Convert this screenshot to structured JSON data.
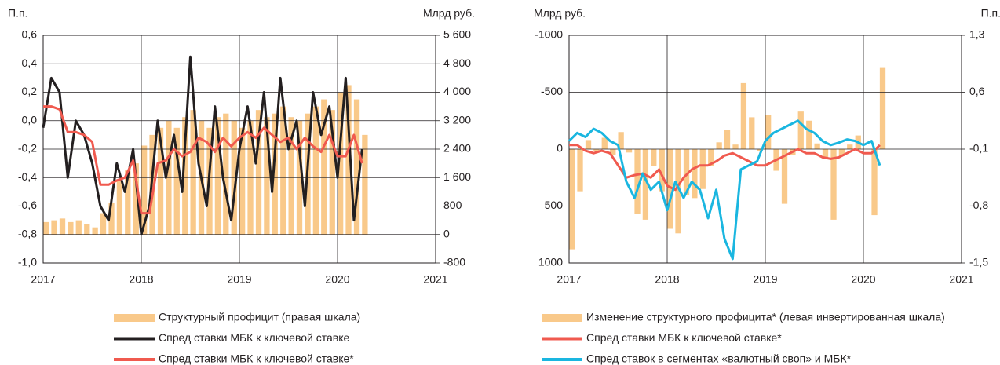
{
  "chart_data": [
    {
      "type": "combo",
      "y_label": "П.п.",
      "y2_label": "Млрд руб.",
      "xlim": [
        2017,
        2021
      ],
      "xticks": [
        2017,
        2018,
        2019,
        2020,
        2021
      ],
      "ylim": [
        -1.0,
        0.6
      ],
      "yticks": [
        {
          "value": -1.0,
          "label": "-1,0"
        },
        {
          "value": -0.8,
          "label": "-0,8"
        },
        {
          "value": -0.6,
          "label": "-0,6"
        },
        {
          "value": -0.4,
          "label": "-0,4"
        },
        {
          "value": -0.2,
          "label": "-0,2"
        },
        {
          "value": 0.0,
          "label": "0,0"
        },
        {
          "value": 0.2,
          "label": "0,2"
        },
        {
          "value": 0.4,
          "label": "0,4"
        },
        {
          "value": 0.6,
          "label": "0,6"
        }
      ],
      "y2lim": [
        -800,
        5600
      ],
      "y2ticks": [
        -800,
        0,
        800,
        {
          "value": 1600,
          "label": "1 600"
        },
        {
          "value": 2400,
          "label": "2 400"
        },
        {
          "value": 3200,
          "label": "3 200"
        },
        {
          "value": 4000,
          "label": "4 000"
        },
        {
          "value": 4800,
          "label": "4 800"
        },
        {
          "value": 5600,
          "label": "5 600"
        }
      ],
      "grid": true,
      "series": [
        {
          "name": "Структурный профицит (правая шкала)",
          "kind": "bar",
          "axis": "y2",
          "color": "#f9c98a",
          "x": [
            2017.0,
            2017.083,
            2017.167,
            2017.25,
            2017.333,
            2017.417,
            2017.5,
            2017.583,
            2017.667,
            2017.75,
            2017.833,
            2017.917,
            2018.0,
            2018.083,
            2018.167,
            2018.25,
            2018.333,
            2018.417,
            2018.5,
            2018.583,
            2018.667,
            2018.75,
            2018.833,
            2018.917,
            2019.0,
            2019.083,
            2019.167,
            2019.25,
            2019.333,
            2019.417,
            2019.5,
            2019.583,
            2019.667,
            2019.75,
            2019.833,
            2019.917,
            2020.0,
            2020.083,
            2020.167,
            2020.25
          ],
          "values": [
            350,
            400,
            450,
            350,
            400,
            300,
            200,
            600,
            900,
            1500,
            1800,
            2000,
            2500,
            2800,
            3000,
            3200,
            3000,
            3300,
            3500,
            3200,
            3000,
            3300,
            3400,
            3200,
            3000,
            3200,
            3500,
            3300,
            3400,
            3600,
            3300,
            3200,
            3400,
            3600,
            3800,
            3500,
            4000,
            4200,
            3800,
            2800
          ]
        },
        {
          "name": "Спред ставки МБК к ключевой ставке",
          "kind": "line",
          "axis": "y",
          "color": "#231f20",
          "x": [
            2017.0,
            2017.083,
            2017.167,
            2017.25,
            2017.333,
            2017.417,
            2017.5,
            2017.583,
            2017.667,
            2017.75,
            2017.833,
            2017.917,
            2018.0,
            2018.083,
            2018.167,
            2018.25,
            2018.333,
            2018.417,
            2018.5,
            2018.583,
            2018.667,
            2018.75,
            2018.833,
            2018.917,
            2019.0,
            2019.083,
            2019.167,
            2019.25,
            2019.333,
            2019.417,
            2019.5,
            2019.583,
            2019.667,
            2019.75,
            2019.833,
            2019.917,
            2020.0,
            2020.083,
            2020.167,
            2020.25
          ],
          "values": [
            -0.05,
            0.3,
            0.2,
            -0.4,
            0.0,
            -0.1,
            -0.3,
            -0.6,
            -0.7,
            -0.3,
            -0.5,
            -0.2,
            -0.8,
            -0.6,
            0.0,
            -0.4,
            -0.1,
            -0.5,
            0.45,
            -0.3,
            -0.6,
            0.1,
            -0.4,
            -0.7,
            -0.2,
            0.1,
            -0.3,
            0.2,
            -0.5,
            0.3,
            -0.2,
            0.0,
            -0.6,
            0.2,
            -0.1,
            0.1,
            -0.4,
            0.3,
            -0.7,
            -0.2
          ]
        },
        {
          "name": "Спред ставки МБК к ключевой ставке*",
          "kind": "line",
          "axis": "y",
          "color": "#f05a4f",
          "x": [
            2017.0,
            2017.083,
            2017.167,
            2017.25,
            2017.333,
            2017.417,
            2017.5,
            2017.583,
            2017.667,
            2017.75,
            2017.833,
            2017.917,
            2018.0,
            2018.083,
            2018.167,
            2018.25,
            2018.333,
            2018.417,
            2018.5,
            2018.583,
            2018.667,
            2018.75,
            2018.833,
            2018.917,
            2019.0,
            2019.083,
            2019.167,
            2019.25,
            2019.333,
            2019.417,
            2019.5,
            2019.583,
            2019.667,
            2019.75,
            2019.833,
            2019.917,
            2020.0,
            2020.083,
            2020.167,
            2020.25
          ],
          "values": [
            0.1,
            0.1,
            0.08,
            -0.08,
            -0.08,
            -0.1,
            -0.15,
            -0.45,
            -0.45,
            -0.42,
            -0.4,
            -0.28,
            -0.65,
            -0.65,
            -0.3,
            -0.28,
            -0.2,
            -0.25,
            -0.22,
            -0.12,
            -0.15,
            -0.22,
            -0.12,
            -0.18,
            -0.12,
            -0.08,
            -0.12,
            -0.05,
            -0.1,
            -0.15,
            -0.12,
            -0.2,
            -0.12,
            -0.18,
            -0.22,
            -0.1,
            -0.25,
            -0.25,
            -0.1,
            -0.3
          ]
        }
      ]
    },
    {
      "type": "combo",
      "y_label": "Млрд руб.",
      "y2_label": "П.п.",
      "xlim": [
        2017,
        2021
      ],
      "xticks": [
        2017,
        2018,
        2019,
        2020,
        2021
      ],
      "ylim": [
        1000,
        -1000
      ],
      "yticks": [
        1000,
        500,
        0,
        -500,
        -1000
      ],
      "y2lim": [
        -1.5,
        1.3
      ],
      "y2ticks": [
        {
          "value": -1.5,
          "label": "-1,5"
        },
        {
          "value": -0.8,
          "label": "-0,8"
        },
        {
          "value": -0.1,
          "label": "-0,1"
        },
        {
          "value": 0.6,
          "label": "0,6"
        },
        {
          "value": 1.3,
          "label": "1,3"
        }
      ],
      "grid": true,
      "series": [
        {
          "name": "Изменение структурного профицита* (левая инвертированная шкала)",
          "kind": "bar",
          "axis": "y",
          "color": "#f9c98a",
          "x": [
            2017.0,
            2017.083,
            2017.167,
            2017.25,
            2017.333,
            2017.417,
            2017.5,
            2017.583,
            2017.667,
            2017.75,
            2017.833,
            2017.917,
            2018.0,
            2018.083,
            2018.167,
            2018.25,
            2018.333,
            2018.417,
            2018.5,
            2018.583,
            2018.667,
            2018.75,
            2018.833,
            2018.917,
            2019.0,
            2019.083,
            2019.167,
            2019.25,
            2019.333,
            2019.417,
            2019.5,
            2019.583,
            2019.667,
            2019.75,
            2019.833,
            2019.917,
            2020.0,
            2020.083,
            2020.167
          ],
          "values": [
            880,
            370,
            -80,
            20,
            -100,
            50,
            -150,
            30,
            570,
            620,
            150,
            370,
            700,
            740,
            400,
            430,
            350,
            150,
            -60,
            -170,
            -40,
            -580,
            -280,
            20,
            -300,
            190,
            480,
            50,
            -330,
            -250,
            -50,
            80,
            620,
            60,
            -40,
            -120,
            0,
            580,
            -720
          ]
        },
        {
          "name": "Спред ставки МБК к ключевой ставке*",
          "kind": "line",
          "axis": "y2",
          "color": "#f05a4f",
          "x": [
            2017.0,
            2017.083,
            2017.167,
            2017.25,
            2017.333,
            2017.417,
            2017.5,
            2017.583,
            2017.667,
            2017.75,
            2017.833,
            2017.917,
            2018.0,
            2018.083,
            2018.167,
            2018.25,
            2018.333,
            2018.417,
            2018.5,
            2018.583,
            2018.667,
            2018.75,
            2018.833,
            2018.917,
            2019.0,
            2019.083,
            2019.167,
            2019.25,
            2019.333,
            2019.417,
            2019.5,
            2019.583,
            2019.667,
            2019.75,
            2019.833,
            2019.917,
            2020.0,
            2020.083,
            2020.167
          ],
          "values": [
            -0.05,
            -0.05,
            -0.12,
            -0.15,
            -0.12,
            -0.15,
            -0.3,
            -0.45,
            -0.42,
            -0.4,
            -0.45,
            -0.35,
            -0.55,
            -0.6,
            -0.45,
            -0.35,
            -0.3,
            -0.3,
            -0.25,
            -0.18,
            -0.15,
            -0.2,
            -0.25,
            -0.3,
            -0.3,
            -0.25,
            -0.2,
            -0.15,
            -0.1,
            -0.15,
            -0.15,
            -0.2,
            -0.22,
            -0.2,
            -0.15,
            -0.1,
            -0.15,
            -0.15,
            -0.05
          ]
        },
        {
          "name": "Спред ставок в сегментах «валютный своп» и МБК*",
          "kind": "line",
          "axis": "y2",
          "color": "#1ab6e0",
          "x": [
            2017.0,
            2017.083,
            2017.167,
            2017.25,
            2017.333,
            2017.417,
            2017.5,
            2017.583,
            2017.667,
            2017.75,
            2017.833,
            2017.917,
            2018.0,
            2018.083,
            2018.167,
            2018.25,
            2018.333,
            2018.417,
            2018.5,
            2018.583,
            2018.667,
            2018.75,
            2018.833,
            2018.917,
            2019.0,
            2019.083,
            2019.167,
            2019.25,
            2019.333,
            2019.417,
            2019.5,
            2019.583,
            2019.667,
            2019.75,
            2019.833,
            2019.917,
            2020.0,
            2020.083,
            2020.167
          ],
          "values": [
            0.0,
            0.1,
            0.05,
            0.15,
            0.1,
            0.0,
            -0.05,
            -0.5,
            -0.7,
            -0.4,
            -0.6,
            -0.5,
            -0.85,
            -0.5,
            -0.7,
            -0.5,
            -0.6,
            -0.95,
            -0.6,
            -1.2,
            -1.45,
            -0.35,
            -0.3,
            -0.25,
            0.0,
            0.1,
            0.15,
            0.2,
            0.25,
            0.15,
            0.1,
            0.0,
            -0.05,
            -0.02,
            0.02,
            0.0,
            -0.05,
            0.0,
            -0.3
          ]
        }
      ]
    }
  ]
}
